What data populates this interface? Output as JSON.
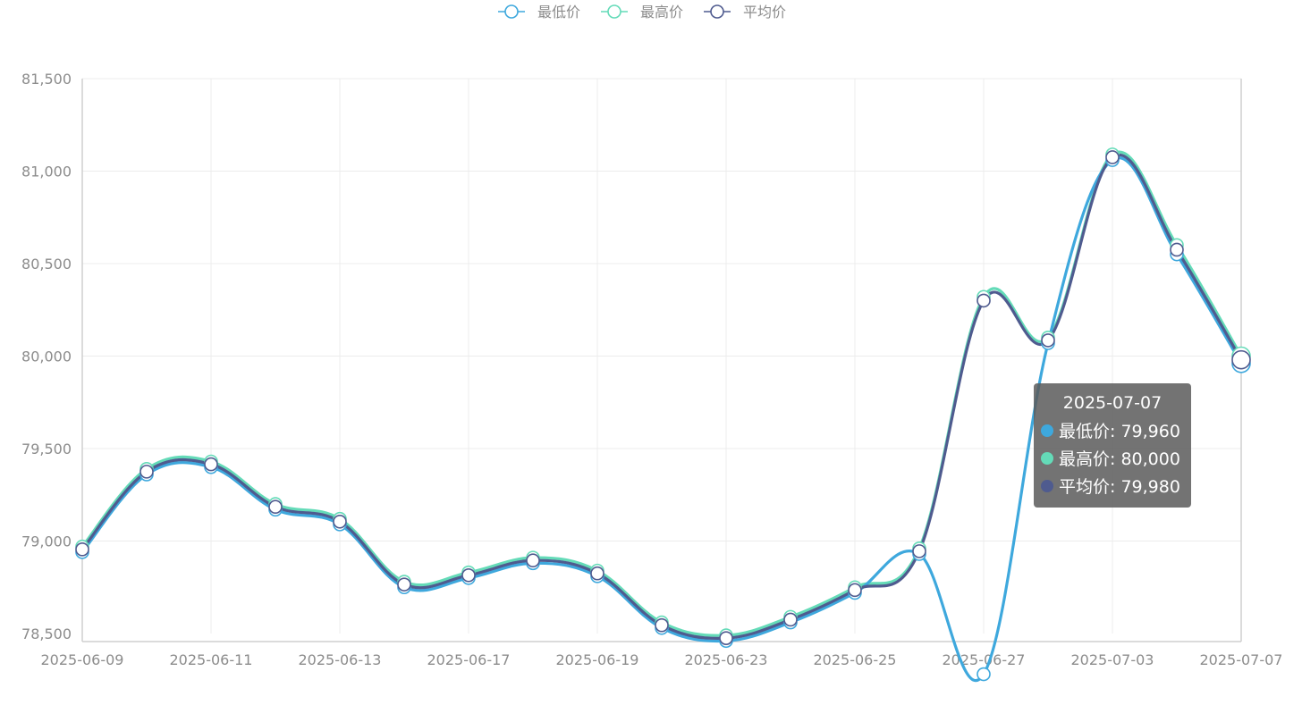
{
  "legend": [
    {
      "name": "最低价",
      "color": "#3ea8dd"
    },
    {
      "name": "最高价",
      "color": "#64dbb8"
    },
    {
      "name": "平均价",
      "color": "#4f5b8f"
    }
  ],
  "tooltip": {
    "title": "2025-07-07",
    "rows": [
      {
        "label": "最低价: 79,960",
        "color": "#3ea8dd"
      },
      {
        "label": "最高价: 80,000",
        "color": "#64dbb8"
      },
      {
        "label": "平均价: 79,980",
        "color": "#4f5b8f"
      }
    ]
  },
  "chart_data": {
    "type": "line",
    "title": "",
    "xlabel": "",
    "ylabel": "",
    "x": [
      "2025-06-09",
      "2025-06-10",
      "2025-06-11",
      "2025-06-12",
      "2025-06-13",
      "2025-06-16",
      "2025-06-17",
      "2025-06-18",
      "2025-06-19",
      "2025-06-20",
      "2025-06-23",
      "2025-06-24",
      "2025-06-25",
      "2025-06-26",
      "2025-06-27",
      "2025-06-30",
      "2025-07-03",
      "2025-07-04",
      "2025-07-07"
    ],
    "x_tick_labels": [
      "2025-06-09",
      "2025-06-11",
      "2025-06-13",
      "2025-06-17",
      "2025-06-19",
      "2025-06-23",
      "2025-06-25",
      "2025-06-27",
      "2025-07-03",
      "2025-07-07"
    ],
    "y_tick_labels": [
      "81,500",
      "81,000",
      "80,500",
      "80,000",
      "79,500",
      "79,000",
      "78,500"
    ],
    "ylim": [
      78500,
      81500
    ],
    "grid": true,
    "legend_position": "top-center",
    "series": [
      {
        "name": "最低价",
        "color": "#3ea8dd",
        "values": [
          78940,
          79360,
          79400,
          79170,
          79090,
          78750,
          78800,
          78880,
          78810,
          78530,
          78460,
          78560,
          78720,
          78930,
          78280,
          80070,
          81060,
          80550,
          79960
        ]
      },
      {
        "name": "最高价",
        "color": "#64dbb8",
        "values": [
          78970,
          79390,
          79430,
          79200,
          79120,
          78780,
          78830,
          78910,
          78840,
          78560,
          78490,
          78590,
          78750,
          78960,
          80320,
          80100,
          81090,
          80600,
          80000
        ]
      },
      {
        "name": "平均价",
        "color": "#4f5b8f",
        "values": [
          78955,
          79375,
          79415,
          79185,
          79105,
          78765,
          78815,
          78895,
          78825,
          78545,
          78475,
          78575,
          78735,
          78945,
          80300,
          80085,
          81075,
          80575,
          79980
        ]
      }
    ]
  }
}
